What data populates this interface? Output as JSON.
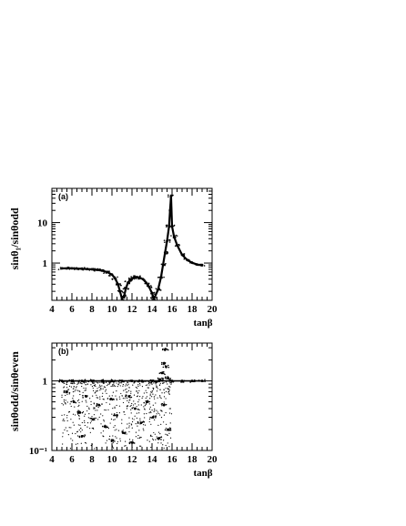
{
  "chart_data": [
    {
      "type": "scatter",
      "panel_label": "(a)",
      "xlabel": "tanβ",
      "ylabel": "sinθ₁/sinθodd",
      "xlim": [
        4,
        20
      ],
      "ylim": [
        0.12,
        70
      ],
      "yscale": "log",
      "x_ticks": [
        "4",
        "6",
        "8",
        "10",
        "12",
        "14",
        "16",
        "18",
        "20"
      ],
      "y_ticks": [
        {
          "value": 1,
          "label": "1"
        },
        {
          "value": 10,
          "label": "10"
        }
      ],
      "series": [
        {
          "points": [
            [
              5.0,
              0.74
            ],
            [
              5.5,
              0.74
            ],
            [
              6.0,
              0.74
            ],
            [
              6.5,
              0.73
            ],
            [
              7.0,
              0.72
            ],
            [
              7.5,
              0.71
            ],
            [
              8.0,
              0.7
            ],
            [
              8.5,
              0.68
            ],
            [
              9.0,
              0.65
            ],
            [
              9.5,
              0.6
            ],
            [
              10.0,
              0.52
            ],
            [
              10.3,
              0.42
            ],
            [
              10.6,
              0.3
            ],
            [
              10.8,
              0.2
            ],
            [
              11.0,
              0.13
            ],
            [
              11.2,
              0.15
            ],
            [
              11.4,
              0.24
            ],
            [
              11.6,
              0.33
            ],
            [
              11.9,
              0.4
            ],
            [
              12.2,
              0.44
            ],
            [
              12.5,
              0.45
            ],
            [
              12.8,
              0.43
            ],
            [
              13.1,
              0.4
            ],
            [
              13.4,
              0.33
            ],
            [
              13.7,
              0.26
            ],
            [
              14.0,
              0.18
            ],
            [
              14.2,
              0.13
            ],
            [
              14.6,
              0.22
            ],
            [
              14.9,
              0.45
            ],
            [
              15.1,
              0.9
            ],
            [
              15.3,
              1.8
            ],
            [
              15.5,
              3.5
            ],
            [
              15.7,
              8
            ],
            [
              15.8,
              20
            ],
            [
              15.9,
              45
            ],
            [
              16.0,
              8
            ],
            [
              16.2,
              4.5
            ],
            [
              16.5,
              2.8
            ],
            [
              17.0,
              1.6
            ],
            [
              17.5,
              1.2
            ],
            [
              18.0,
              1.02
            ],
            [
              18.5,
              0.92
            ],
            [
              19.0,
              0.88
            ]
          ]
        }
      ]
    },
    {
      "type": "scatter",
      "panel_label": "(b)",
      "xlabel": "tanβ",
      "ylabel": "sinθodd/sinθeven",
      "xlim": [
        4,
        20
      ],
      "ylim": [
        0.1,
        3.5
      ],
      "yscale": "log",
      "x_ticks": [
        "4",
        "6",
        "8",
        "10",
        "12",
        "14",
        "16",
        "18",
        "20"
      ],
      "y_ticks": [
        {
          "value": 1,
          "label": "1"
        },
        {
          "value": 0.1,
          "label": "10⁻¹"
        }
      ],
      "series": [
        {
          "points": [
            [
              5.0,
              1.0
            ],
            [
              6.0,
              1.0
            ],
            [
              7.0,
              1.0
            ],
            [
              8.0,
              1.0
            ],
            [
              9.0,
              1.0
            ],
            [
              10.0,
              1.0
            ],
            [
              11.0,
              1.0
            ],
            [
              12.0,
              1.0
            ],
            [
              13.0,
              1.0
            ],
            [
              14.0,
              1.0
            ],
            [
              14.8,
              1.05
            ],
            [
              15.0,
              1.3
            ],
            [
              15.2,
              1.8
            ],
            [
              15.3,
              2.8
            ],
            [
              15.4,
              1.6
            ],
            [
              15.6,
              1.1
            ],
            [
              16.0,
              1.0
            ],
            [
              17.0,
              1.0
            ],
            [
              18.0,
              1.0
            ],
            [
              19.0,
              1.0
            ],
            [
              5.5,
              0.7
            ],
            [
              6.2,
              0.5
            ],
            [
              6.8,
              0.35
            ],
            [
              7.4,
              0.6
            ],
            [
              8.1,
              0.28
            ],
            [
              8.7,
              0.45
            ],
            [
              9.3,
              0.22
            ],
            [
              9.9,
              0.55
            ],
            [
              10.5,
              0.32
            ],
            [
              11.1,
              0.18
            ],
            [
              11.7,
              0.6
            ],
            [
              12.3,
              0.4
            ],
            [
              12.9,
              0.25
            ],
            [
              13.5,
              0.5
            ],
            [
              14.1,
              0.3
            ],
            [
              14.7,
              0.15
            ],
            [
              15.2,
              0.45
            ],
            [
              15.6,
              0.2
            ],
            [
              7.0,
              0.16
            ],
            [
              10.0,
              0.14
            ],
            [
              12.0,
              0.13
            ]
          ]
        }
      ]
    }
  ]
}
